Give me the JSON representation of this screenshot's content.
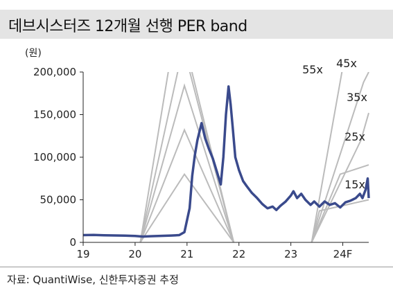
{
  "chart_data": {
    "type": "line",
    "title": "데브시스터즈 12개월 선행 PER band",
    "unit_label": "(원)",
    "source": "자료: QuantiWise, 신한투자증권 추정",
    "x_ticks": [
      "19",
      "20",
      "21",
      "22",
      "23",
      "24F"
    ],
    "y_ticks": [
      "0",
      "50,000",
      "100,000",
      "150,000",
      "200,000"
    ],
    "ylim": [
      0,
      200000
    ],
    "xlim": [
      2019.0,
      2024.5
    ],
    "price": {
      "color": "#3a4a8c",
      "points": [
        [
          2019.0,
          8500
        ],
        [
          2019.2,
          8700
        ],
        [
          2019.4,
          8300
        ],
        [
          2019.6,
          8100
        ],
        [
          2019.8,
          7900
        ],
        [
          2020.0,
          7500
        ],
        [
          2020.15,
          6800
        ],
        [
          2020.3,
          7200
        ],
        [
          2020.5,
          7600
        ],
        [
          2020.7,
          8000
        ],
        [
          2020.85,
          8500
        ],
        [
          2020.95,
          12000
        ],
        [
          2021.05,
          40000
        ],
        [
          2021.1,
          78000
        ],
        [
          2021.15,
          102000
        ],
        [
          2021.2,
          120000
        ],
        [
          2021.28,
          140000
        ],
        [
          2021.35,
          122000
        ],
        [
          2021.42,
          110000
        ],
        [
          2021.5,
          98000
        ],
        [
          2021.58,
          82000
        ],
        [
          2021.65,
          68000
        ],
        [
          2021.7,
          100000
        ],
        [
          2021.75,
          150000
        ],
        [
          2021.8,
          183000
        ],
        [
          2021.84,
          162000
        ],
        [
          2021.88,
          135000
        ],
        [
          2021.93,
          100000
        ],
        [
          2022.0,
          85000
        ],
        [
          2022.08,
          72000
        ],
        [
          2022.15,
          66000
        ],
        [
          2022.25,
          58000
        ],
        [
          2022.35,
          52000
        ],
        [
          2022.45,
          45000
        ],
        [
          2022.55,
          40000
        ],
        [
          2022.65,
          42000
        ],
        [
          2022.72,
          38000
        ],
        [
          2022.8,
          43000
        ],
        [
          2022.9,
          48000
        ],
        [
          2023.0,
          55000
        ],
        [
          2023.05,
          60000
        ],
        [
          2023.12,
          52000
        ],
        [
          2023.2,
          57000
        ],
        [
          2023.28,
          50000
        ],
        [
          2023.38,
          44000
        ],
        [
          2023.45,
          48000
        ],
        [
          2023.55,
          42000
        ],
        [
          2023.65,
          48000
        ],
        [
          2023.75,
          44000
        ],
        [
          2023.85,
          46000
        ],
        [
          2023.95,
          41000
        ],
        [
          2024.05,
          47000
        ],
        [
          2024.15,
          49000
        ],
        [
          2024.25,
          52000
        ],
        [
          2024.33,
          57000
        ],
        [
          2024.38,
          52000
        ],
        [
          2024.44,
          62000
        ],
        [
          2024.48,
          75000
        ],
        [
          2024.5,
          52000
        ]
      ]
    },
    "bands": [
      {
        "label": "15x",
        "color": "#bbbbbb"
      },
      {
        "label": "25x",
        "color": "#bbbbbb"
      },
      {
        "label": "35x",
        "color": "#bbbbbb"
      },
      {
        "label": "45x",
        "color": "#bbbbbb"
      },
      {
        "label": "55x",
        "color": "#bbbbbb"
      }
    ]
  }
}
